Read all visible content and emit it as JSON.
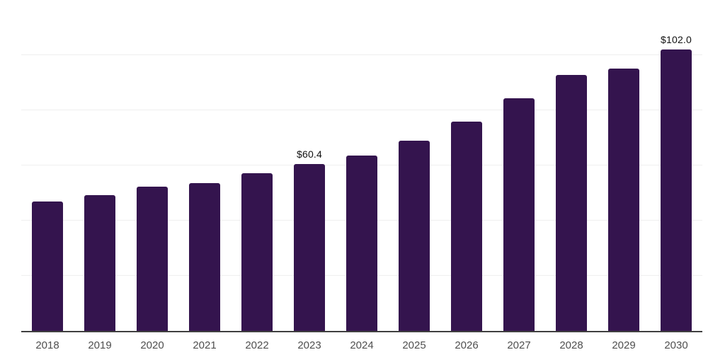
{
  "chart_data": {
    "type": "bar",
    "title": "",
    "xlabel": "",
    "ylabel": "",
    "categories": [
      "2018",
      "2019",
      "2020",
      "2021",
      "2022",
      "2023",
      "2024",
      "2025",
      "2026",
      "2027",
      "2028",
      "2029",
      "2030"
    ],
    "values": [
      46.8,
      49.3,
      52.4,
      53.6,
      57.3,
      60.4,
      63.7,
      69.1,
      75.8,
      84.3,
      92.9,
      95.2,
      102.0
    ],
    "data_labels": {
      "2023": "$60.4",
      "2030": "$102.0"
    },
    "ylim": [
      0,
      120
    ],
    "gridline_step": 20,
    "grid": true,
    "legend": false,
    "colors": {
      "bar": "#34144e",
      "value_label": "#111111",
      "tick_label": "#4f4f4f",
      "gridline": "#efefef",
      "axis_line": "#404040",
      "background": "#ffffff"
    }
  }
}
